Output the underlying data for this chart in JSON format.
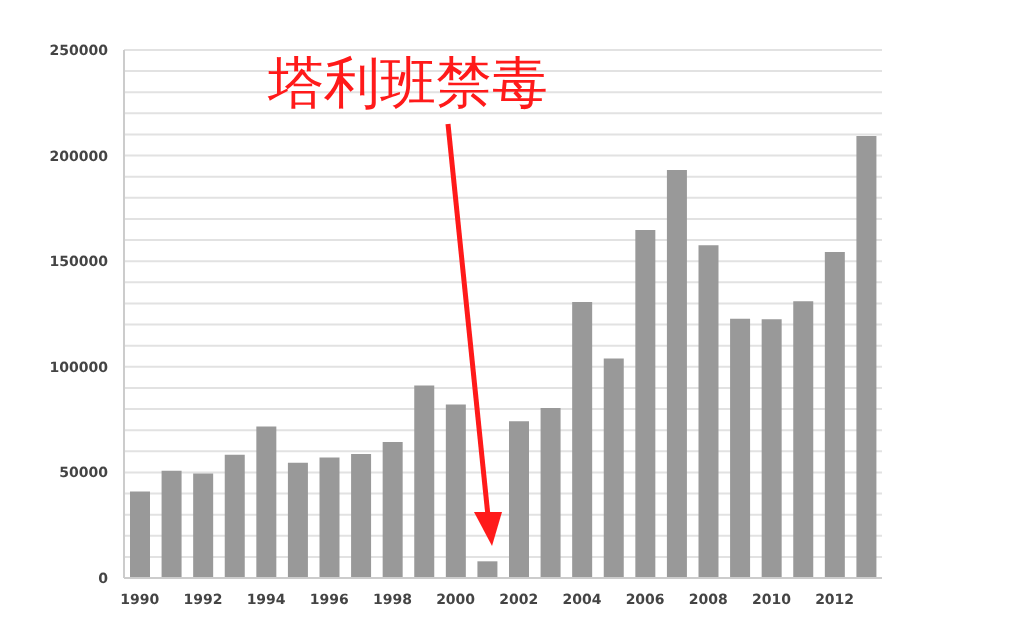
{
  "chart_data": {
    "type": "bar",
    "categories": [
      "1990",
      null,
      "1992",
      null,
      "1994",
      null,
      "1996",
      null,
      "1998",
      null,
      "2000",
      null,
      "2002",
      null,
      "2004",
      null,
      "2006",
      null,
      "2008",
      null,
      "2010",
      null,
      "2012",
      null
    ],
    "values": [
      41000,
      50800,
      49500,
      58400,
      71700,
      54600,
      57100,
      58700,
      64400,
      91200,
      82100,
      7900,
      74200,
      80500,
      130700,
      103900,
      164800,
      193200,
      157500,
      122800,
      122500,
      131000,
      154400,
      209300
    ],
    "color": "#999999",
    "ylim": [
      0,
      250000
    ],
    "yticks": [
      0,
      {
        "value": 10000,
        "label": null
      },
      {
        "value": 20000,
        "label": null
      },
      {
        "value": 30000,
        "label": null
      },
      {
        "value": 40000,
        "label": null
      },
      50000,
      {
        "value": 60000,
        "label": null
      },
      {
        "value": 70000,
        "label": null
      },
      {
        "value": 80000,
        "label": null
      },
      {
        "value": 90000,
        "label": null
      },
      100000,
      {
        "value": 110000,
        "label": null
      },
      {
        "value": 120000,
        "label": null
      },
      {
        "value": 130000,
        "label": null
      },
      {
        "value": 140000,
        "label": null
      },
      150000,
      {
        "value": 160000,
        "label": null
      },
      {
        "value": 170000,
        "label": null
      },
      {
        "value": 180000,
        "label": null
      },
      {
        "value": 190000,
        "label": null
      },
      200000,
      {
        "value": 210000,
        "label": null
      },
      {
        "value": 220000,
        "label": null
      },
      {
        "value": 230000,
        "label": null
      },
      {
        "value": 240000,
        "label": null
      },
      250000
    ],
    "grid": "y",
    "annotations": [
      "塔利班禁毒"
    ]
  }
}
